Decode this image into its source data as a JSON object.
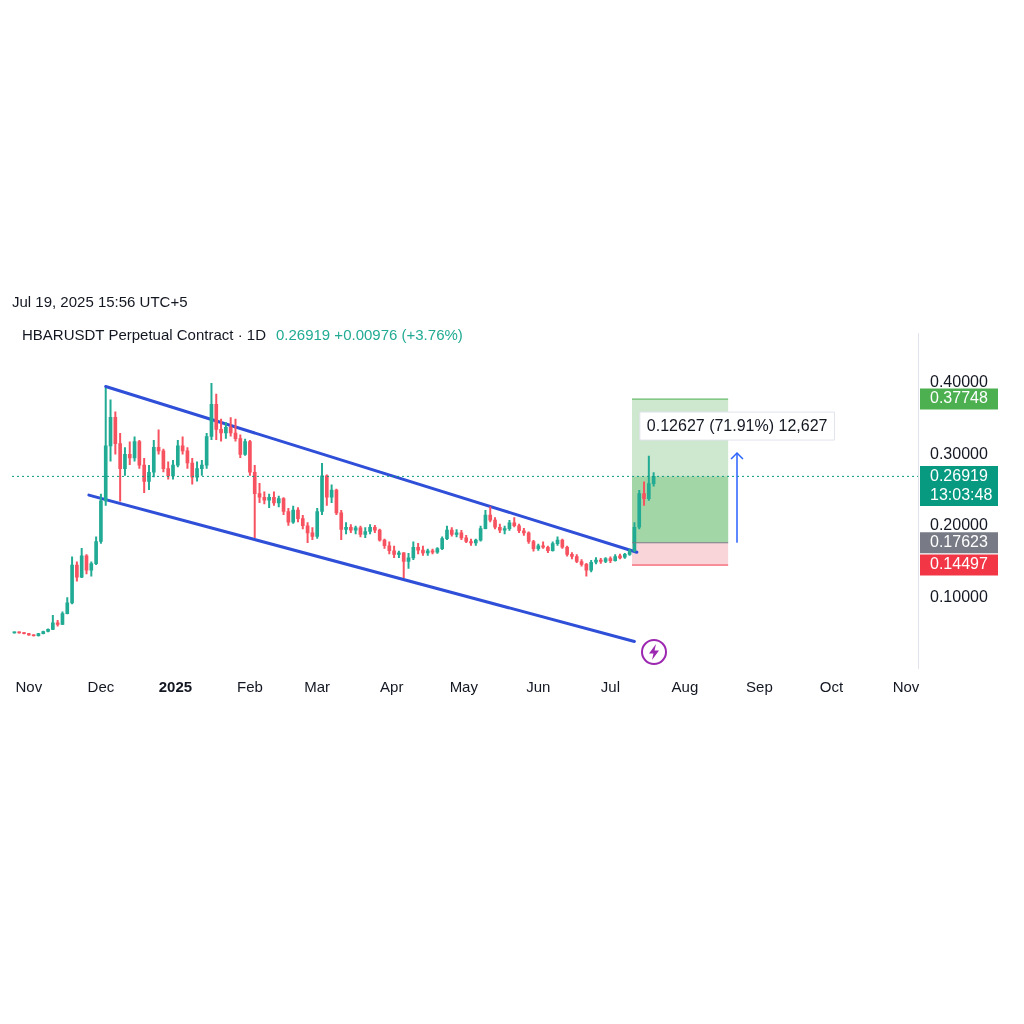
{
  "chart_data": {
    "type": "candlestick",
    "title": "HBARUSDT Perpetual Contract · 1D",
    "subtitle": "0.26919 +0.00976 (+3.76%)",
    "annotations": [
      "Jul 19, 2025 15:56 UTC+5",
      "0.12627 (71.91%) 12,627"
    ],
    "x": [
      "2024-10-26",
      "2024-10-28",
      "2024-10-30",
      "2024-11-01",
      "2024-11-03",
      "2024-11-05",
      "2024-11-07",
      "2024-11-09",
      "2024-11-11",
      "2024-11-13",
      "2024-11-15",
      "2024-11-17",
      "2024-11-19",
      "2024-11-21",
      "2024-11-23",
      "2024-11-25",
      "2024-11-27",
      "2024-11-29",
      "2024-12-01",
      "2024-12-03",
      "2024-12-05",
      "2024-12-07",
      "2024-12-09",
      "2024-12-11",
      "2024-12-13",
      "2024-12-15",
      "2024-12-17",
      "2024-12-19",
      "2024-12-21",
      "2024-12-23",
      "2024-12-25",
      "2024-12-27",
      "2024-12-29",
      "2024-12-31",
      "2025-01-02",
      "2025-01-04",
      "2025-01-06",
      "2025-01-08",
      "2025-01-10",
      "2025-01-12",
      "2025-01-14",
      "2025-01-16",
      "2025-01-18",
      "2025-01-20",
      "2025-01-22",
      "2025-01-24",
      "2025-01-26",
      "2025-01-28",
      "2025-01-30",
      "2025-02-01",
      "2025-02-03",
      "2025-02-05",
      "2025-02-07",
      "2025-02-09",
      "2025-02-11",
      "2025-02-13",
      "2025-02-15",
      "2025-02-17",
      "2025-02-19",
      "2025-02-21",
      "2025-02-23",
      "2025-02-25",
      "2025-02-27",
      "2025-03-01",
      "2025-03-03",
      "2025-03-05",
      "2025-03-07",
      "2025-03-09",
      "2025-03-11",
      "2025-03-13",
      "2025-03-15",
      "2025-03-17",
      "2025-03-19",
      "2025-03-21",
      "2025-03-23",
      "2025-03-25",
      "2025-03-27",
      "2025-03-29",
      "2025-03-31",
      "2025-04-02",
      "2025-04-04",
      "2025-04-06",
      "2025-04-08",
      "2025-04-10",
      "2025-04-12",
      "2025-04-14",
      "2025-04-16",
      "2025-04-18",
      "2025-04-20",
      "2025-04-22",
      "2025-04-24",
      "2025-04-26",
      "2025-04-28",
      "2025-04-30",
      "2025-05-02",
      "2025-05-04",
      "2025-05-06",
      "2025-05-08",
      "2025-05-10",
      "2025-05-12",
      "2025-05-14",
      "2025-05-16",
      "2025-05-18",
      "2025-05-20",
      "2025-05-22",
      "2025-05-24",
      "2025-05-26",
      "2025-05-28",
      "2025-05-30",
      "2025-06-01",
      "2025-06-03",
      "2025-06-05",
      "2025-06-07",
      "2025-06-09",
      "2025-06-11",
      "2025-06-13",
      "2025-06-15",
      "2025-06-17",
      "2025-06-19",
      "2025-06-21",
      "2025-06-23",
      "2025-06-25",
      "2025-06-27",
      "2025-06-29",
      "2025-07-01",
      "2025-07-03",
      "2025-07-05",
      "2025-07-07",
      "2025-07-09",
      "2025-07-11",
      "2025-07-13",
      "2025-07-15",
      "2025-07-17",
      "2025-07-19"
    ],
    "ohlc": [
      [
        0.05,
        0.052,
        0.049,
        0.051
      ],
      [
        0.051,
        0.052,
        0.049,
        0.05
      ],
      [
        0.05,
        0.051,
        0.048,
        0.049
      ],
      [
        0.049,
        0.05,
        0.046,
        0.047
      ],
      [
        0.047,
        0.048,
        0.045,
        0.046
      ],
      [
        0.046,
        0.05,
        0.045,
        0.049
      ],
      [
        0.049,
        0.053,
        0.048,
        0.052
      ],
      [
        0.052,
        0.056,
        0.051,
        0.055
      ],
      [
        0.055,
        0.075,
        0.054,
        0.064
      ],
      [
        0.064,
        0.068,
        0.059,
        0.062
      ],
      [
        0.062,
        0.08,
        0.061,
        0.077
      ],
      [
        0.077,
        0.1,
        0.076,
        0.092
      ],
      [
        0.092,
        0.157,
        0.09,
        0.145
      ],
      [
        0.145,
        0.15,
        0.122,
        0.128
      ],
      [
        0.128,
        0.169,
        0.127,
        0.158
      ],
      [
        0.158,
        0.16,
        0.132,
        0.138
      ],
      [
        0.138,
        0.15,
        0.129,
        0.147
      ],
      [
        0.147,
        0.185,
        0.145,
        0.178
      ],
      [
        0.178,
        0.245,
        0.175,
        0.235
      ],
      [
        0.235,
        0.393,
        0.228,
        0.312
      ],
      [
        0.312,
        0.377,
        0.29,
        0.352
      ],
      [
        0.352,
        0.36,
        0.3,
        0.315
      ],
      [
        0.315,
        0.33,
        0.234,
        0.28
      ],
      [
        0.28,
        0.31,
        0.27,
        0.3
      ],
      [
        0.3,
        0.318,
        0.285,
        0.295
      ],
      [
        0.295,
        0.325,
        0.29,
        0.318
      ],
      [
        0.318,
        0.32,
        0.28,
        0.285
      ],
      [
        0.285,
        0.295,
        0.246,
        0.262
      ],
      [
        0.262,
        0.285,
        0.25,
        0.275
      ],
      [
        0.275,
        0.32,
        0.268,
        0.31
      ],
      [
        0.31,
        0.335,
        0.3,
        0.305
      ],
      [
        0.305,
        0.308,
        0.275,
        0.28
      ],
      [
        0.28,
        0.29,
        0.265,
        0.27
      ],
      [
        0.27,
        0.292,
        0.265,
        0.285
      ],
      [
        0.285,
        0.32,
        0.282,
        0.312
      ],
      [
        0.312,
        0.325,
        0.3,
        0.305
      ],
      [
        0.305,
        0.31,
        0.28,
        0.288
      ],
      [
        0.288,
        0.295,
        0.258,
        0.268
      ],
      [
        0.268,
        0.29,
        0.262,
        0.28
      ],
      [
        0.28,
        0.292,
        0.27,
        0.285
      ],
      [
        0.285,
        0.33,
        0.28,
        0.325
      ],
      [
        0.325,
        0.4,
        0.32,
        0.37
      ],
      [
        0.37,
        0.385,
        0.32,
        0.335
      ],
      [
        0.335,
        0.35,
        0.318,
        0.33
      ],
      [
        0.33,
        0.345,
        0.322,
        0.338
      ],
      [
        0.338,
        0.352,
        0.325,
        0.33
      ],
      [
        0.33,
        0.35,
        0.318,
        0.322
      ],
      [
        0.322,
        0.328,
        0.295,
        0.3
      ],
      [
        0.3,
        0.322,
        0.298,
        0.318
      ],
      [
        0.318,
        0.32,
        0.27,
        0.275
      ],
      [
        0.275,
        0.285,
        0.183,
        0.245
      ],
      [
        0.245,
        0.26,
        0.232,
        0.24
      ],
      [
        0.24,
        0.248,
        0.23,
        0.236
      ],
      [
        0.236,
        0.245,
        0.225,
        0.24
      ],
      [
        0.24,
        0.248,
        0.228,
        0.232
      ],
      [
        0.232,
        0.242,
        0.226,
        0.238
      ],
      [
        0.238,
        0.24,
        0.215,
        0.22
      ],
      [
        0.22,
        0.225,
        0.2,
        0.205
      ],
      [
        0.205,
        0.228,
        0.203,
        0.222
      ],
      [
        0.222,
        0.226,
        0.205,
        0.21
      ],
      [
        0.21,
        0.215,
        0.195,
        0.2
      ],
      [
        0.2,
        0.205,
        0.176,
        0.19
      ],
      [
        0.19,
        0.198,
        0.18,
        0.185
      ],
      [
        0.185,
        0.225,
        0.182,
        0.22
      ],
      [
        0.22,
        0.288,
        0.215,
        0.27
      ],
      [
        0.27,
        0.272,
        0.228,
        0.24
      ],
      [
        0.24,
        0.258,
        0.232,
        0.25
      ],
      [
        0.25,
        0.252,
        0.215,
        0.218
      ],
      [
        0.218,
        0.222,
        0.18,
        0.195
      ],
      [
        0.195,
        0.205,
        0.188,
        0.198
      ],
      [
        0.198,
        0.202,
        0.19,
        0.194
      ],
      [
        0.194,
        0.2,
        0.188,
        0.197
      ],
      [
        0.197,
        0.2,
        0.184,
        0.188
      ],
      [
        0.188,
        0.198,
        0.183,
        0.192
      ],
      [
        0.192,
        0.202,
        0.188,
        0.198
      ],
      [
        0.198,
        0.201,
        0.19,
        0.194
      ],
      [
        0.194,
        0.196,
        0.178,
        0.18
      ],
      [
        0.18,
        0.182,
        0.168,
        0.172
      ],
      [
        0.172,
        0.178,
        0.16,
        0.165
      ],
      [
        0.165,
        0.172,
        0.155,
        0.16
      ],
      [
        0.16,
        0.165,
        0.155,
        0.162
      ],
      [
        0.162,
        0.163,
        0.127,
        0.15
      ],
      [
        0.15,
        0.162,
        0.14,
        0.155
      ],
      [
        0.155,
        0.178,
        0.152,
        0.17
      ],
      [
        0.17,
        0.176,
        0.16,
        0.166
      ],
      [
        0.166,
        0.172,
        0.158,
        0.162
      ],
      [
        0.162,
        0.168,
        0.158,
        0.165
      ],
      [
        0.165,
        0.168,
        0.16,
        0.163
      ],
      [
        0.163,
        0.17,
        0.161,
        0.168
      ],
      [
        0.168,
        0.185,
        0.166,
        0.182
      ],
      [
        0.182,
        0.2,
        0.18,
        0.194
      ],
      [
        0.194,
        0.198,
        0.185,
        0.188
      ],
      [
        0.188,
        0.195,
        0.184,
        0.19
      ],
      [
        0.19,
        0.194,
        0.18,
        0.183
      ],
      [
        0.183,
        0.187,
        0.176,
        0.178
      ],
      [
        0.178,
        0.182,
        0.172,
        0.176
      ],
      [
        0.176,
        0.182,
        0.172,
        0.18
      ],
      [
        0.18,
        0.2,
        0.178,
        0.196
      ],
      [
        0.196,
        0.222,
        0.195,
        0.215
      ],
      [
        0.215,
        0.227,
        0.205,
        0.208
      ],
      [
        0.208,
        0.212,
        0.195,
        0.198
      ],
      [
        0.198,
        0.203,
        0.19,
        0.194
      ],
      [
        0.194,
        0.2,
        0.188,
        0.196
      ],
      [
        0.196,
        0.208,
        0.193,
        0.204
      ],
      [
        0.204,
        0.212,
        0.198,
        0.2
      ],
      [
        0.2,
        0.203,
        0.19,
        0.193
      ],
      [
        0.193,
        0.197,
        0.186,
        0.19
      ],
      [
        0.19,
        0.192,
        0.175,
        0.178
      ],
      [
        0.178,
        0.18,
        0.164,
        0.168
      ],
      [
        0.168,
        0.175,
        0.165,
        0.172
      ],
      [
        0.172,
        0.178,
        0.168,
        0.17
      ],
      [
        0.17,
        0.172,
        0.162,
        0.165
      ],
      [
        0.165,
        0.178,
        0.164,
        0.175
      ],
      [
        0.175,
        0.185,
        0.172,
        0.18
      ],
      [
        0.18,
        0.182,
        0.168,
        0.17
      ],
      [
        0.17,
        0.172,
        0.157,
        0.16
      ],
      [
        0.16,
        0.163,
        0.153,
        0.157
      ],
      [
        0.157,
        0.16,
        0.148,
        0.15
      ],
      [
        0.15,
        0.153,
        0.143,
        0.146
      ],
      [
        0.146,
        0.148,
        0.129,
        0.138
      ],
      [
        0.138,
        0.152,
        0.135,
        0.149
      ],
      [
        0.149,
        0.156,
        0.146,
        0.152
      ],
      [
        0.152,
        0.155,
        0.147,
        0.15
      ],
      [
        0.15,
        0.156,
        0.148,
        0.154
      ],
      [
        0.154,
        0.157,
        0.148,
        0.151
      ],
      [
        0.151,
        0.16,
        0.15,
        0.157
      ],
      [
        0.158,
        0.161,
        0.153,
        0.155
      ],
      [
        0.156,
        0.162,
        0.154,
        0.16
      ],
      [
        0.16,
        0.168,
        0.158,
        0.165
      ],
      [
        0.165,
        0.205,
        0.163,
        0.198
      ],
      [
        0.198,
        0.25,
        0.195,
        0.245
      ],
      [
        0.245,
        0.262,
        0.228,
        0.238
      ],
      [
        0.238,
        0.298,
        0.235,
        0.259
      ],
      [
        0.259,
        0.275,
        0.255,
        0.26919
      ]
    ],
    "colors": [
      "#22ab94",
      "#f7525f",
      "#f7525f",
      "#f7525f",
      "#f7525f",
      "#22ab94",
      "#22ab94",
      "#22ab94",
      "#22ab94",
      "#f7525f",
      "#22ab94",
      "#22ab94",
      "#22ab94",
      "#f7525f",
      "#22ab94",
      "#f7525f",
      "#22ab94",
      "#22ab94",
      "#22ab94",
      "#22ab94",
      "#22ab94",
      "#f7525f",
      "#f7525f",
      "#22ab94",
      "#f7525f",
      "#22ab94",
      "#f7525f",
      "#f7525f",
      "#22ab94",
      "#22ab94",
      "#f7525f",
      "#f7525f",
      "#f7525f",
      "#22ab94",
      "#22ab94",
      "#f7525f",
      "#f7525f",
      "#f7525f",
      "#22ab94",
      "#22ab94",
      "#22ab94",
      "#22ab94",
      "#f7525f",
      "#f7525f",
      "#22ab94",
      "#f7525f",
      "#f7525f",
      "#f7525f",
      "#22ab94",
      "#f7525f",
      "#f7525f",
      "#f7525f",
      "#f7525f",
      "#22ab94",
      "#f7525f",
      "#22ab94",
      "#f7525f",
      "#f7525f",
      "#22ab94",
      "#f7525f",
      "#f7525f",
      "#f7525f",
      "#f7525f",
      "#22ab94",
      "#22ab94",
      "#f7525f",
      "#22ab94",
      "#f7525f",
      "#f7525f",
      "#22ab94",
      "#f7525f",
      "#22ab94",
      "#f7525f",
      "#22ab94",
      "#22ab94",
      "#f7525f",
      "#f7525f",
      "#f7525f",
      "#f7525f",
      "#f7525f",
      "#22ab94",
      "#f7525f",
      "#22ab94",
      "#22ab94",
      "#f7525f",
      "#f7525f",
      "#22ab94",
      "#f7525f",
      "#22ab94",
      "#22ab94",
      "#22ab94",
      "#f7525f",
      "#22ab94",
      "#f7525f",
      "#f7525f",
      "#f7525f",
      "#22ab94",
      "#22ab94",
      "#22ab94",
      "#f7525f",
      "#f7525f",
      "#f7525f",
      "#22ab94",
      "#22ab94",
      "#f7525f",
      "#f7525f",
      "#f7525f",
      "#f7525f",
      "#f7525f",
      "#22ab94",
      "#f7525f",
      "#f7525f",
      "#22ab94",
      "#22ab94",
      "#f7525f",
      "#f7525f",
      "#f7525f",
      "#f7525f",
      "#f7525f",
      "#f7525f",
      "#22ab94",
      "#22ab94",
      "#f7525f",
      "#22ab94",
      "#f7525f",
      "#22ab94",
      "#f7525f",
      "#22ab94",
      "#22ab94",
      "#22ab94",
      "#22ab94",
      "#f7525f",
      "#22ab94",
      "#22ab94"
    ],
    "series": [
      {
        "type": "line",
        "x": [
          "2024-12-03",
          "2025-07-12"
        ],
        "values": [
          0.395,
          0.163
        ],
        "color": "#2f4fd8"
      },
      {
        "type": "line",
        "x": [
          "2024-11-26",
          "2025-07-11"
        ],
        "values": [
          0.243,
          0.038
        ],
        "color": "#2f4fd8"
      }
    ],
    "xlim": [
      "2024-10-25",
      "2025-11-06"
    ],
    "xticks": [
      {
        "value": "2024-11-01",
        "label": "Nov"
      },
      {
        "value": "2024-12-01",
        "label": "Dec"
      },
      {
        "value": "2025-01-01",
        "label": "2025"
      },
      {
        "value": "2025-02-01",
        "label": "Feb"
      },
      {
        "value": "2025-03-01",
        "label": "Mar"
      },
      {
        "value": "2025-04-01",
        "label": "Apr"
      },
      {
        "value": "2025-05-01",
        "label": "May"
      },
      {
        "value": "2025-06-01",
        "label": "Jun"
      },
      {
        "value": "2025-07-01",
        "label": "Jul"
      },
      {
        "value": "2025-08-01",
        "label": "Aug"
      },
      {
        "value": "2025-09-01",
        "label": "Sep"
      },
      {
        "value": "2025-10-01",
        "label": "Oct"
      },
      {
        "value": "2025-11-01",
        "label": "Nov"
      }
    ],
    "ylim": [
      0,
      0.47
    ],
    "yticks": [
      {
        "value": 0.1,
        "label": "0.10000"
      },
      {
        "value": 0.14497,
        "label": "0.14497"
      },
      {
        "value": 0.17623,
        "label": "0.17623"
      },
      {
        "value": 0.2,
        "label": "0.20000"
      },
      {
        "value": 0.3,
        "label": "0.30000"
      },
      {
        "value": 0.37748,
        "label": "0.37748"
      },
      {
        "value": 0.4,
        "label": "0.40000"
      }
    ],
    "ref_lines": [
      {
        "axis": "y",
        "value": 0.37748,
        "color": "#4caf50"
      },
      {
        "axis": "y",
        "value": 0.26919,
        "label": "0.26919\n13:03:48",
        "color": "#089981",
        "line_style": "dotted"
      },
      {
        "axis": "y",
        "value": 0.17623,
        "color": "#787b86"
      },
      {
        "axis": "y",
        "value": 0.14497,
        "color": "#f23645"
      }
    ],
    "bands": [
      {
        "axis": "y",
        "from": 0.17623,
        "to": 0.37748,
        "color": "#cde8ce"
      },
      {
        "axis": "y",
        "from": 0.17623,
        "to": 0.26919,
        "color": "#a3d6a6"
      },
      {
        "axis": "y",
        "from": 0.14497,
        "to": 0.17623,
        "color": "#f9d5d9"
      }
    ]
  }
}
